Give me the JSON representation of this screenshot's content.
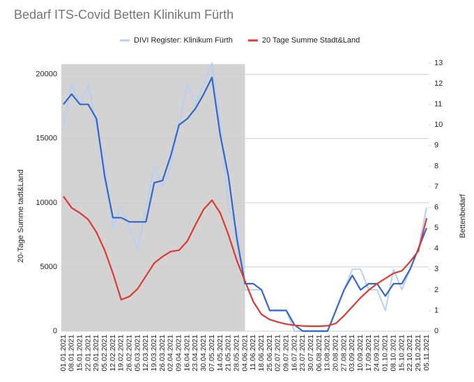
{
  "chart_data": {
    "type": "line",
    "title": "Bedarf ITS-Covid Betten Klinikum Fürth",
    "y_label": "20-Tage Summe tadt&Land",
    "y2_label": "Bettenbedarf",
    "shaded_range": [
      "01.01.2021",
      "04.06.2021"
    ],
    "categories": [
      "01.01.2021",
      "08.01.2021",
      "15.01.2021",
      "22.01.2021",
      "29.01.2021",
      "05.02.2021",
      "12.02.2021",
      "19.02.2021",
      "26.02.2021",
      "05.03.2021",
      "12.03.2021",
      "19.03.2021",
      "26.03.2021",
      "02.04.2021",
      "09.04.2021",
      "16.04.2021",
      "23.04.2021",
      "30.04.2021",
      "07.05.2021",
      "14.05.2021",
      "21.05.2021",
      "28.05.2021",
      "04.06.2021",
      "11.06.2021",
      "18.06.2021",
      "25.06.2021",
      "02.07.2021",
      "09.07.2021",
      "16.07.2021",
      "23.07.2021",
      "30.07.2021",
      "06.08.2021",
      "13.08.2021",
      "20.08.2021",
      "27.08.2021",
      "03.09.2021",
      "10.09.2021",
      "17.09.2021",
      "24.09.2021",
      "01.10.2021",
      "08.10.2021",
      "15.10.2021",
      "22.10.2021",
      "29.10.2021",
      "05.11.2021"
    ],
    "series": [
      {
        "name": "DIVI Register: Klinikum Fürth",
        "color": "#b9cff2",
        "axis": "y2",
        "values": [
          10,
          12,
          11,
          12,
          10,
          8,
          5,
          6,
          5,
          4,
          6,
          8,
          7,
          8,
          10,
          12,
          11,
          12,
          13,
          10,
          6,
          5,
          2,
          2,
          2,
          1,
          1,
          1,
          0,
          0,
          0,
          0,
          0,
          1,
          2,
          3,
          3,
          2,
          2,
          1,
          3,
          2,
          3,
          4,
          6
        ]
      },
      {
        "color": "#3366cc",
        "axis": "y2",
        "values": [
          11,
          11.5,
          11,
          11,
          10.3,
          7.5,
          5.5,
          5.5,
          5.3,
          5.3,
          5.3,
          7.2,
          7.3,
          8.5,
          10,
          10.3,
          10.8,
          11.5,
          12.3,
          9.5,
          7.5,
          4.5,
          2.3,
          2.3,
          2,
          1,
          1,
          1,
          0.3,
          0,
          0,
          0,
          0,
          1,
          2,
          2.7,
          2,
          2.3,
          2.3,
          1.7,
          2.3,
          2.3,
          3,
          4,
          5
        ]
      },
      {
        "name": "20 Tage Summe Stadt&Land",
        "color": "#db3a30",
        "values": [
          10500,
          9600,
          9200,
          8700,
          7700,
          6300,
          4500,
          2450,
          2700,
          3300,
          4300,
          5300,
          5800,
          6200,
          6300,
          7000,
          8300,
          9500,
          10200,
          9200,
          7500,
          5500,
          3900,
          2300,
          1300,
          900,
          700,
          550,
          450,
          400,
          380,
          380,
          420,
          600,
          1200,
          1900,
          2600,
          3200,
          3700,
          4100,
          4500,
          4700,
          5400,
          6250,
          8800
        ]
      }
    ],
    "ylim": [
      0,
      20800
    ],
    "yticks": [
      0,
      5000,
      10000,
      15000,
      20000
    ],
    "y2lim": [
      0,
      12.95
    ],
    "y2ticks": [
      0,
      1,
      2,
      3,
      4,
      5,
      6,
      7,
      8,
      9,
      10,
      11,
      12,
      13
    ],
    "grid": true
  }
}
